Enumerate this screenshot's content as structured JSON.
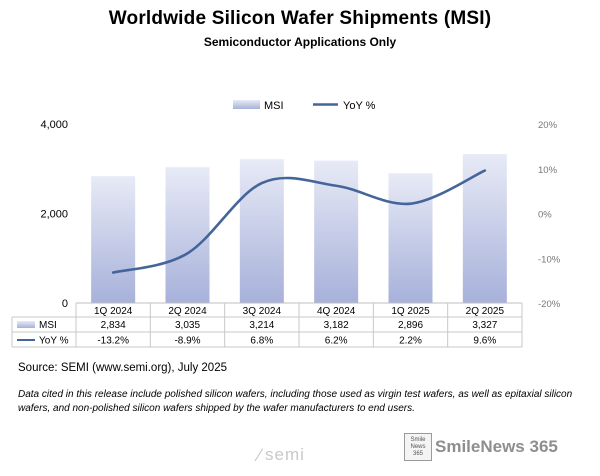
{
  "header": {
    "title": "Worldwide Silicon Wafer Shipments (MSI)",
    "subtitle": "Semiconductor Applications Only"
  },
  "chart_data": {
    "type": "bar",
    "categories": [
      "1Q 2024",
      "2Q 2024",
      "3Q 2024",
      "4Q 2024",
      "1Q 2025",
      "2Q 2025"
    ],
    "series": [
      {
        "name": "MSI",
        "type": "bar",
        "axis": "left",
        "values": [
          2834,
          3035,
          3214,
          3182,
          2896,
          3327
        ],
        "labels": [
          "2,834",
          "3,035",
          "3,214",
          "3,182",
          "2,896",
          "3,327"
        ],
        "color": "#a9b3dc"
      },
      {
        "name": "YoY %",
        "type": "line",
        "axis": "right",
        "values": [
          -13.2,
          -8.9,
          6.8,
          6.2,
          2.2,
          9.6
        ],
        "labels": [
          "-13.2%",
          "-8.9%",
          "6.8%",
          "6.2%",
          "2.2%",
          "9.6%"
        ],
        "color": "#44659a"
      }
    ],
    "y_left": {
      "range": [
        0,
        4000
      ],
      "ticks": [
        0,
        2000,
        4000
      ],
      "tick_labels": [
        "0",
        "2,000",
        "4,000"
      ]
    },
    "y_right": {
      "range": [
        -20,
        20
      ],
      "ticks": [
        -20,
        -10,
        0,
        10,
        20
      ],
      "tick_labels": [
        "-20%",
        "-10%",
        "0%",
        "10%",
        "20%"
      ]
    },
    "legend": {
      "placement": "top-center"
    },
    "data_table": true,
    "grid": false
  },
  "footer": {
    "source": "Source: SEMI (www.semi.org), July 2025",
    "note": "Data cited in this release include polished silicon wafers, including those used as virgin test wafers, as well as epitaxial silicon wafers, and non-polished silicon wafers shipped by the wafer manufacturers to end users.",
    "logo_text": "semi",
    "watermark_badge": [
      "Smile",
      "News",
      "365"
    ],
    "watermark_text": "SmileNews 365"
  }
}
